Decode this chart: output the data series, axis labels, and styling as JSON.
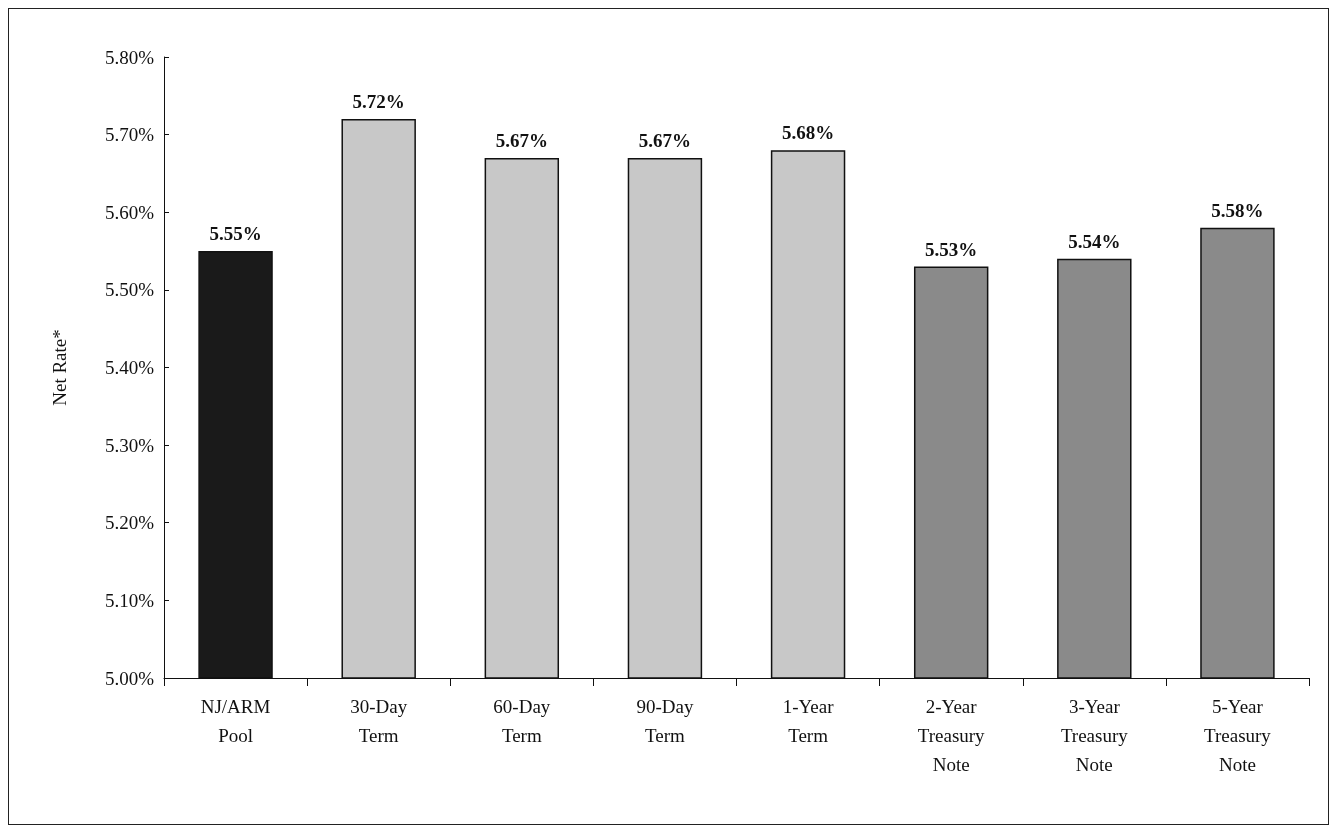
{
  "chart_data": {
    "type": "bar",
    "ylabel": "Net Rate*",
    "categories": [
      "NJ/ARM\nPool",
      "30-Day\nTerm",
      "60-Day\nTerm",
      "90-Day\nTerm",
      "1-Year\nTerm",
      "2-Year\nTreasury\nNote",
      "3-Year\nTreasury\nNote",
      "5-Year\nTreasury\nNote"
    ],
    "values": [
      5.55,
      5.72,
      5.67,
      5.67,
      5.68,
      5.53,
      5.54,
      5.58
    ],
    "colors": [
      "#1a1a1a",
      "#c8c8c8",
      "#c8c8c8",
      "#c8c8c8",
      "#c8c8c8",
      "#8a8a8a",
      "#8a8a8a",
      "#8a8a8a"
    ],
    "value_labels": [
      "5.55%",
      "5.72%",
      "5.67%",
      "5.67%",
      "5.68%",
      "5.53%",
      "5.54%",
      "5.58%"
    ],
    "ylim": [
      5.0,
      5.8
    ],
    "yticks": [
      {
        "value": 5.0,
        "label": "5.00%"
      },
      {
        "value": 5.1,
        "label": "5.10%"
      },
      {
        "value": 5.2,
        "label": "5.20%"
      },
      {
        "value": 5.3,
        "label": "5.30%"
      },
      {
        "value": 5.4,
        "label": "5.40%"
      },
      {
        "value": 5.5,
        "label": "5.50%"
      },
      {
        "value": 5.6,
        "label": "5.60%"
      },
      {
        "value": 5.7,
        "label": "5.70%"
      },
      {
        "value": 5.8,
        "label": "5.80%"
      }
    ],
    "grid": false
  }
}
